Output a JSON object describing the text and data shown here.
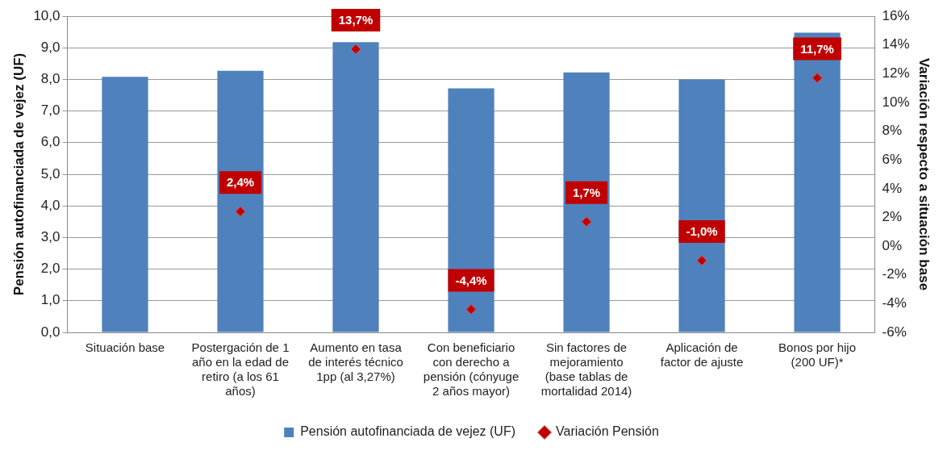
{
  "chart_data": {
    "type": "bar",
    "ylabel": "Pensión autofinanciada de vejez (UF)",
    "y2label": "Variación respecto a situación base",
    "categories": [
      "Situación base",
      "Postergación de 1 año en la edad de retiro (a los 61 años)",
      "Aumento en tasa de interés técnico 1pp (al 3,27%)",
      "Con beneficiario con derecho a pensión (cónyuge 2 años mayor)",
      "Sin factores de mejoramiento (base tablas de mortalidad 2014)",
      "Aplicación de factor de ajuste",
      "Bonos por hijo (200 UF)*"
    ],
    "series": [
      {
        "name": "Pensión autofinanciada de vejez (UF)",
        "color": "#4f81bd",
        "values": [
          8.08,
          8.27,
          9.18,
          7.72,
          8.22,
          8.0,
          9.48
        ]
      },
      {
        "name": "Variación Pensión",
        "type": "scatter",
        "axis": "y2",
        "color": "#c00000",
        "marker": "diamond",
        "x": [
          "Situación base",
          "Postergación de 1 año en la edad de retiro (a los 61 años)",
          "Aumento en tasa de interés técnico 1pp (al 3,27%)",
          "Con beneficiario con derecho a pensión (cónyuge 2 años mayor)",
          "Sin factores de mejoramiento (base tablas de mortalidad 2014)",
          "Aplicación de factor de ajuste",
          "Bonos por hijo (200 UF)*"
        ],
        "values": [
          null,
          2.4,
          13.7,
          -4.4,
          1.7,
          -1.0,
          11.7
        ],
        "value_labels": [
          null,
          "2,4%",
          "13,7%",
          "-4,4%",
          "1,7%",
          "-1,0%",
          "11,7%"
        ]
      }
    ],
    "ylim": [
      0,
      10
    ],
    "yticks": [
      {
        "value": 0,
        "label": "0,0"
      },
      {
        "value": 1,
        "label": "1,0"
      },
      {
        "value": 2,
        "label": "2,0"
      },
      {
        "value": 3,
        "label": "3,0"
      },
      {
        "value": 4,
        "label": "4,0"
      },
      {
        "value": 5,
        "label": "5,0"
      },
      {
        "value": 6,
        "label": "6,0"
      },
      {
        "value": 7,
        "label": "7,0"
      },
      {
        "value": 8,
        "label": "8,0"
      },
      {
        "value": 9,
        "label": "9,0"
      },
      {
        "value": 10,
        "label": "10,0"
      }
    ],
    "y2lim": [
      -6,
      16
    ],
    "y2ticks": [
      {
        "value": -6,
        "label": "-6%"
      },
      {
        "value": -4,
        "label": "-4%"
      },
      {
        "value": -2,
        "label": "-2%"
      },
      {
        "value": 0,
        "label": "0%"
      },
      {
        "value": 2,
        "label": "2%"
      },
      {
        "value": 4,
        "label": "4%"
      },
      {
        "value": 6,
        "label": "6%"
      },
      {
        "value": 8,
        "label": "8%"
      },
      {
        "value": 10,
        "label": "10%"
      },
      {
        "value": 12,
        "label": "12%"
      },
      {
        "value": 14,
        "label": "14%"
      },
      {
        "value": 16,
        "label": "16%"
      }
    ],
    "grid": "y",
    "legend": "bottom"
  }
}
